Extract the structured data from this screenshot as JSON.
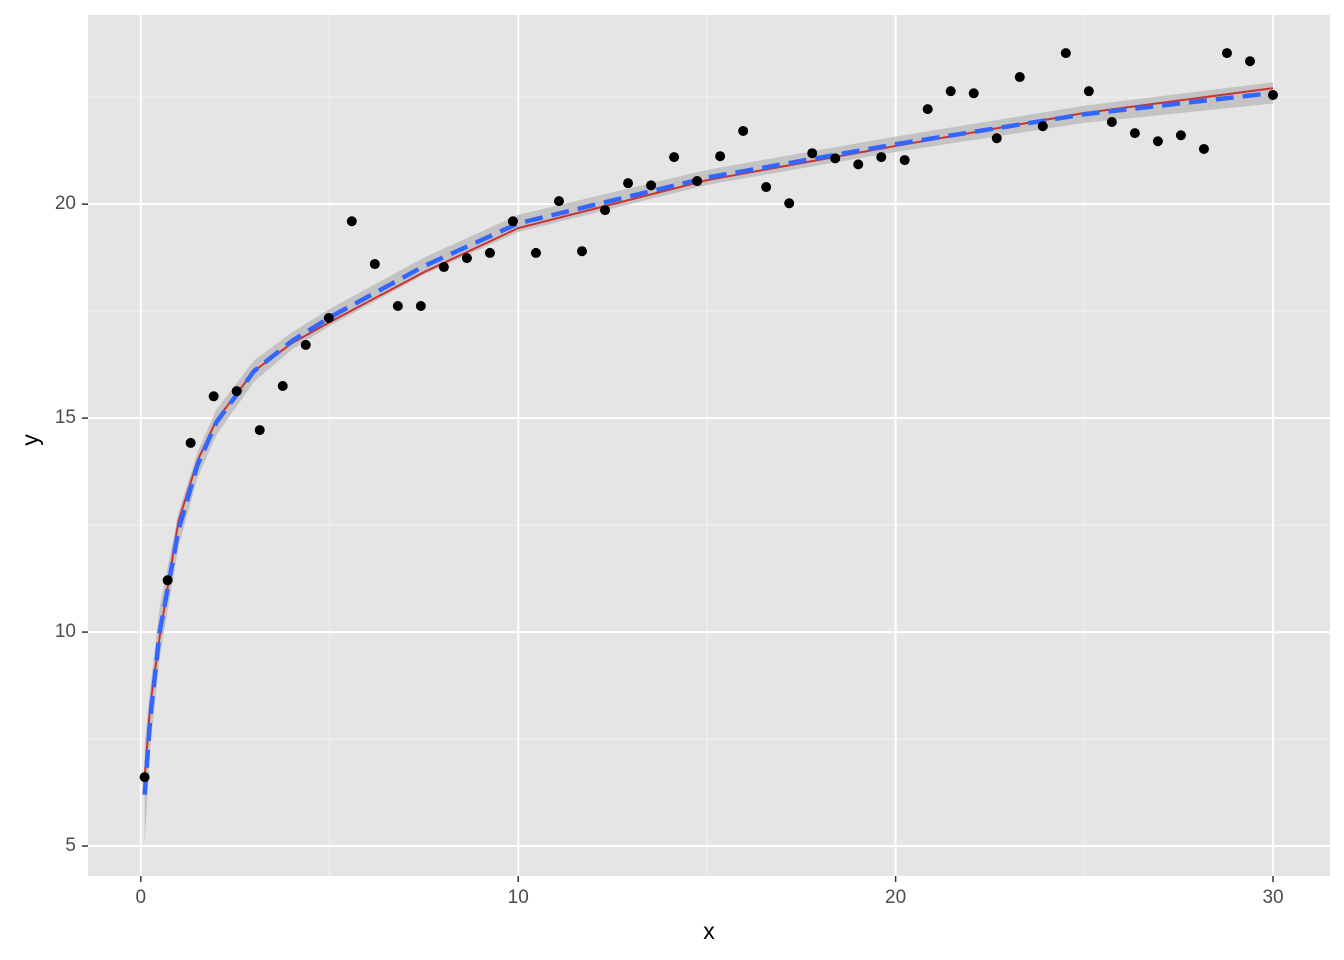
{
  "chart_data": {
    "type": "scatter",
    "x_label": "x",
    "y_label": "y",
    "x": [
      0.1,
      0.71,
      1.32,
      1.93,
      2.54,
      3.15,
      3.76,
      4.37,
      4.98,
      5.59,
      6.2,
      6.81,
      7.42,
      8.03,
      8.64,
      9.25,
      9.86,
      10.47,
      11.08,
      11.69,
      12.3,
      12.91,
      13.52,
      14.13,
      14.74,
      15.35,
      15.96,
      16.57,
      17.18,
      17.79,
      18.4,
      19.01,
      19.62,
      20.24,
      20.85,
      21.46,
      22.07,
      22.68,
      23.29,
      23.9,
      24.51,
      25.12,
      25.73,
      26.34,
      26.95,
      27.56,
      28.17,
      28.78,
      29.39,
      30.0
    ],
    "values": [
      6.61,
      11.21,
      14.42,
      15.51,
      15.63,
      14.72,
      15.75,
      16.71,
      17.34,
      19.6,
      18.6,
      17.62,
      17.62,
      18.53,
      18.74,
      18.86,
      19.6,
      18.86,
      20.07,
      18.9,
      19.86,
      20.49,
      20.44,
      21.1,
      20.54,
      21.12,
      21.71,
      20.4,
      20.02,
      21.19,
      21.07,
      20.93,
      21.1,
      21.03,
      22.22,
      22.64,
      22.59,
      21.54,
      22.97,
      21.82,
      23.53,
      22.64,
      21.92,
      21.66,
      21.47,
      21.61,
      21.29,
      23.53,
      23.34,
      22.55
    ],
    "point_color": "#000000",
    "curve_x": [
      0.1,
      0.25,
      0.5,
      1,
      1.5,
      2,
      3,
      4,
      5,
      7.5,
      10,
      15,
      20,
      25,
      30
    ],
    "lines": [
      {
        "color": "#cc3333",
        "dashed": false,
        "values": [
          6.6,
          8.3,
          9.9,
          12.6,
          14.0,
          14.95,
          16.1,
          16.75,
          17.24,
          18.41,
          19.44,
          20.56,
          21.36,
          22.13,
          22.71
        ]
      },
      {
        "color": "#3366ff",
        "dashed": true,
        "values": [
          6.2,
          8.0,
          10.0,
          12.4,
          13.9,
          14.9,
          16.1,
          16.8,
          17.35,
          18.55,
          19.55,
          20.62,
          21.4,
          22.1,
          22.6
        ],
        "ribbon_color": "#bdbdbd",
        "lower": [
          5.0,
          7.3,
          9.4,
          12.0,
          13.6,
          14.6,
          15.85,
          16.6,
          17.15,
          18.35,
          19.35,
          20.45,
          21.22,
          21.9,
          22.35
        ],
        "upper": [
          7.4,
          8.7,
          10.6,
          12.8,
          14.2,
          15.2,
          16.35,
          17.0,
          17.55,
          18.75,
          19.75,
          20.8,
          21.58,
          22.3,
          22.85
        ]
      }
    ],
    "xlim": [
      -1.4,
      31.51
    ],
    "ylim": [
      4.3,
      24.42
    ],
    "xticks": [
      0,
      10,
      20,
      30
    ],
    "yticks": [
      5,
      10,
      15,
      20
    ],
    "xminor": [
      5,
      15,
      25
    ],
    "yminor": [
      7.5,
      12.5,
      17.5,
      22.5
    ],
    "grid": true,
    "panel_color": "#e5e5e5"
  }
}
